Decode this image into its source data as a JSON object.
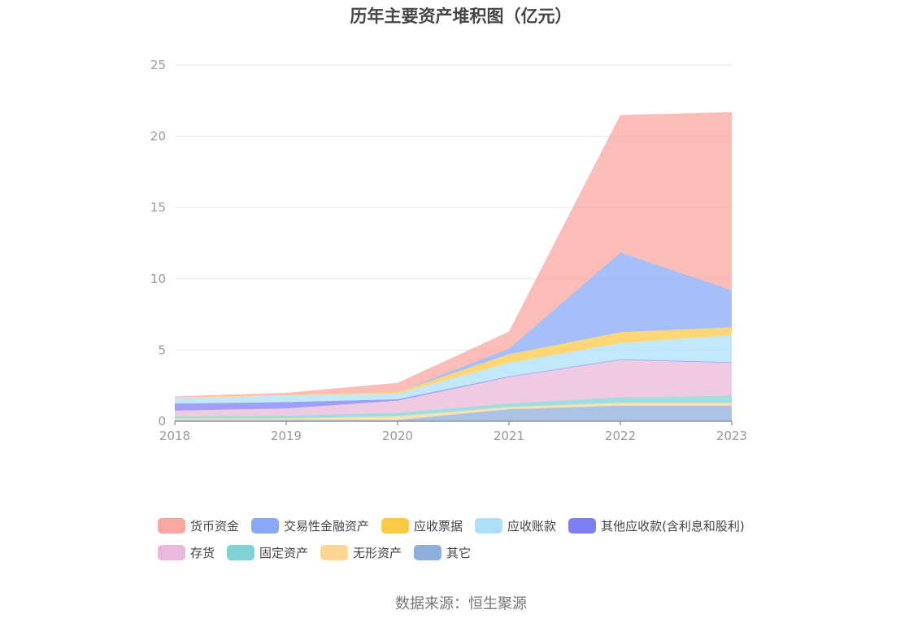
{
  "title": "历年主要资产堆积图（亿元）",
  "source": "数据来源：恒生聚源",
  "chart_data": {
    "type": "area",
    "stacked": true,
    "title": "历年主要资产堆积图（亿元）",
    "x": [
      "2018",
      "2019",
      "2020",
      "2021",
      "2022",
      "2023"
    ],
    "ylim": [
      0,
      25
    ],
    "yticks": [
      0,
      5,
      10,
      15,
      20,
      25
    ],
    "grid": true,
    "legend_position": "bottom",
    "series": [
      {
        "name": "其它",
        "color": "#8eaedb",
        "values": [
          0.1,
          0.1,
          0.1,
          0.85,
          1.1,
          1.1
        ]
      },
      {
        "name": "无形资产",
        "color": "#fed693",
        "values": [
          0.1,
          0.1,
          0.25,
          0.15,
          0.2,
          0.2
        ]
      },
      {
        "name": "固定资产",
        "color": "#7fd3d4",
        "values": [
          0.15,
          0.2,
          0.25,
          0.25,
          0.4,
          0.5
        ]
      },
      {
        "name": "存货",
        "color": "#e9b8da",
        "values": [
          0.4,
          0.5,
          0.85,
          1.85,
          2.6,
          2.3
        ]
      },
      {
        "name": "其他应收款(含利息和股利)",
        "color": "#7f7ff5",
        "values": [
          0.5,
          0.45,
          0.1,
          0.05,
          0.05,
          0.05
        ]
      },
      {
        "name": "应收账款",
        "color": "#aee0fb",
        "values": [
          0.4,
          0.45,
          0.4,
          0.95,
          1.15,
          1.9
        ]
      },
      {
        "name": "应收票据",
        "color": "#fdc945",
        "values": [
          0.05,
          0.05,
          0.1,
          0.6,
          0.75,
          0.55
        ]
      },
      {
        "name": "交易性金融资产",
        "color": "#89a9f6",
        "values": [
          0.0,
          0.0,
          0.0,
          0.4,
          5.6,
          2.6
        ]
      },
      {
        "name": "货币资金",
        "color": "#fba69f",
        "values": [
          0.05,
          0.15,
          0.65,
          1.2,
          9.65,
          12.5
        ]
      }
    ]
  },
  "legend": {
    "rows": [
      [
        {
          "label": "货币资金",
          "color": "#fba69f"
        },
        {
          "label": "交易性金融资产",
          "color": "#89a9f6"
        },
        {
          "label": "应收票据",
          "color": "#fdc945"
        },
        {
          "label": "应收账款",
          "color": "#aee0fb"
        },
        {
          "label": "其他应收款(含利息和股利)",
          "color": "#7f7ff5"
        }
      ],
      [
        {
          "label": "存货",
          "color": "#e9b8da"
        },
        {
          "label": "固定资产",
          "color": "#7fd3d4"
        },
        {
          "label": "无形资产",
          "color": "#fed693"
        },
        {
          "label": "其它",
          "color": "#8eaedb"
        }
      ]
    ]
  }
}
